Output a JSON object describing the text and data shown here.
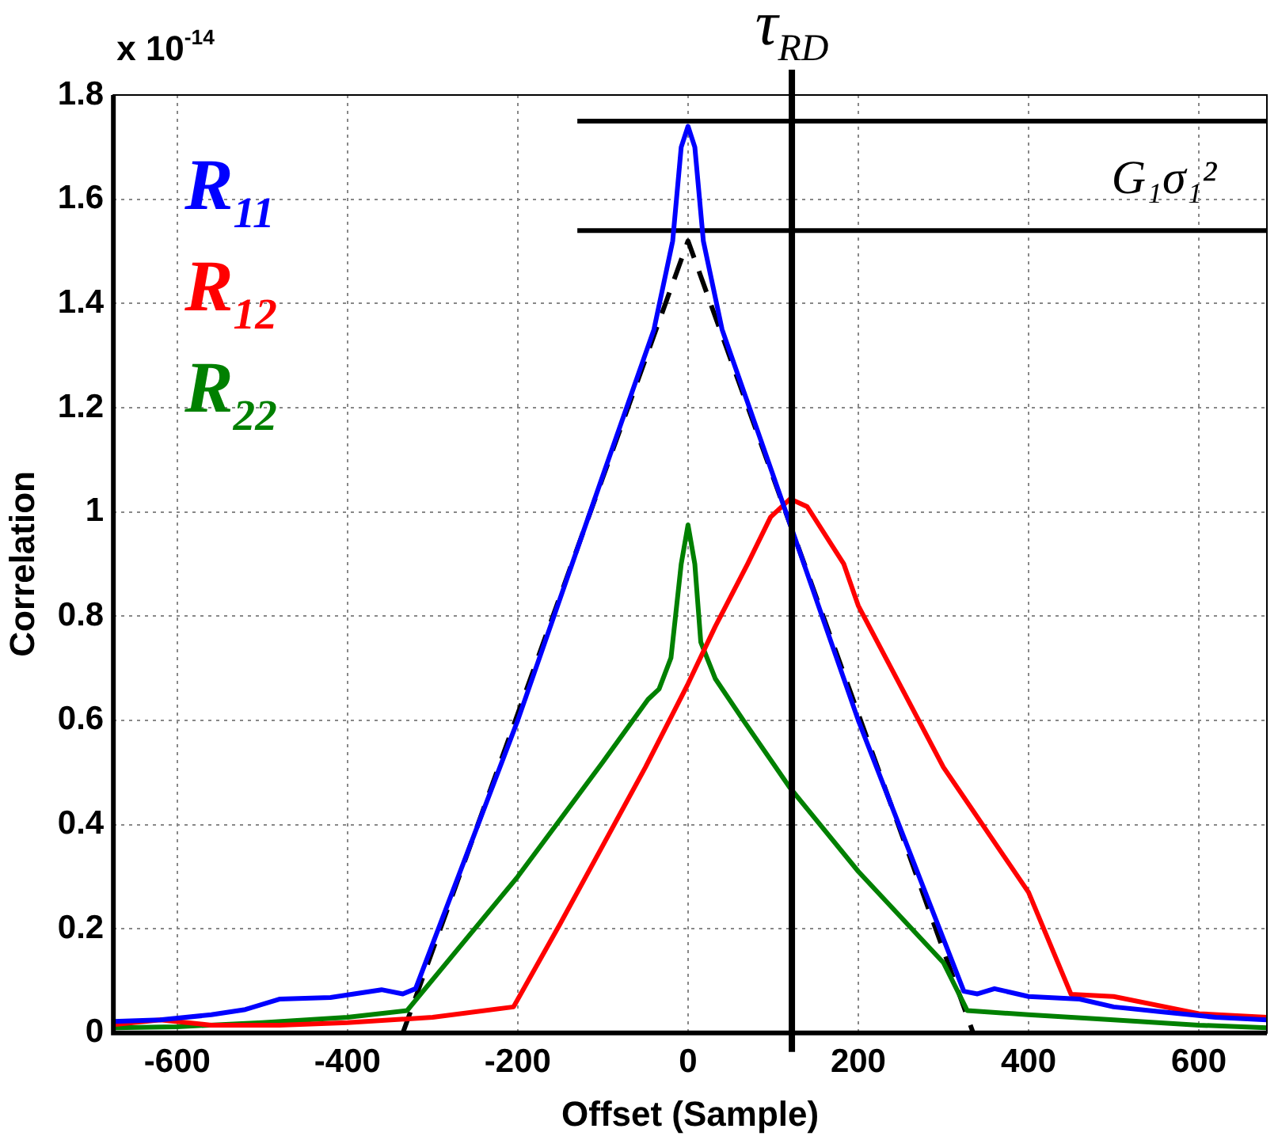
{
  "chart_data": {
    "type": "line",
    "xlabel": "Offset (Sample)",
    "ylabel": "Correlation",
    "xlim": [
      -675,
      680
    ],
    "xticks": [
      -600,
      -400,
      -200,
      0,
      200,
      400,
      600
    ],
    "ylim": [
      0,
      1.8
    ],
    "yticks": [
      0,
      0.2,
      0.4,
      0.6,
      0.8,
      1,
      1.2,
      1.4,
      1.6,
      1.8
    ],
    "grid": true,
    "legend": "top left",
    "line_style": "solid",
    "marker": "none",
    "annotations": [
      "x 10$^{-14}$",
      "G₁σ₁²"
    ],
    "ref_lines": [
      {
        "axis": "x",
        "value": 122,
        "label": "τ$_{RD}$",
        "color": "#000000"
      }
    ],
    "series": [
      {
        "name": "R$_{11}$",
        "color": "#0000ff",
        "x": [
          -675,
          -620,
          -560,
          -520,
          -480,
          -420,
          -360,
          -335,
          -320,
          -200,
          -100,
          -40,
          -18,
          -8,
          0,
          8,
          18,
          40,
          100,
          200,
          324,
          340,
          360,
          400,
          460,
          500,
          560,
          620,
          680
        ],
        "values": [
          0.022,
          0.025,
          0.035,
          0.045,
          0.065,
          0.068,
          0.083,
          0.075,
          0.085,
          0.6,
          1.07,
          1.35,
          1.52,
          1.7,
          1.74,
          1.7,
          1.52,
          1.35,
          1.07,
          0.6,
          0.08,
          0.075,
          0.085,
          0.07,
          0.065,
          0.05,
          0.04,
          0.03,
          0.025
        ]
      },
      {
        "name": "R$_{12}$",
        "color": "#ff0000",
        "x": [
          -675,
          -620,
          -560,
          -480,
          -400,
          -300,
          -205,
          -150,
          -100,
          -50,
          0,
          32,
          70,
          97,
          120,
          140,
          183,
          200,
          300,
          400,
          450,
          500,
          600,
          680
        ],
        "values": [
          0.016,
          0.025,
          0.015,
          0.015,
          0.02,
          0.03,
          0.05,
          0.21,
          0.36,
          0.51,
          0.67,
          0.78,
          0.9,
          0.99,
          1.025,
          1.01,
          0.9,
          0.82,
          0.51,
          0.27,
          0.074,
          0.07,
          0.037,
          0.03
        ]
      },
      {
        "name": "R$_{22}$",
        "color": "#008000",
        "x": [
          -675,
          -600,
          -500,
          -400,
          -330,
          -200,
          -100,
          -47,
          -34,
          -20,
          -8,
          0,
          8,
          15,
          32,
          65,
          120,
          200,
          300,
          328,
          400,
          500,
          600,
          680
        ],
        "values": [
          0.01,
          0.012,
          0.02,
          0.03,
          0.043,
          0.3,
          0.52,
          0.64,
          0.66,
          0.72,
          0.9,
          0.975,
          0.9,
          0.75,
          0.68,
          0.6,
          0.47,
          0.31,
          0.135,
          0.043,
          0.035,
          0.025,
          0.015,
          0.01
        ]
      },
      {
        "color": "#000000",
        "line_style": "dashed",
        "x": [
          -335,
          0,
          335
        ],
        "values": [
          0,
          1.52,
          0
        ]
      },
      {
        "color": "#000000",
        "x": [
          -130,
          680
        ],
        "values": [
          1.75,
          1.75
        ]
      },
      {
        "color": "#000000",
        "x": [
          -130,
          680
        ],
        "values": [
          1.54,
          1.54
        ]
      }
    ]
  }
}
